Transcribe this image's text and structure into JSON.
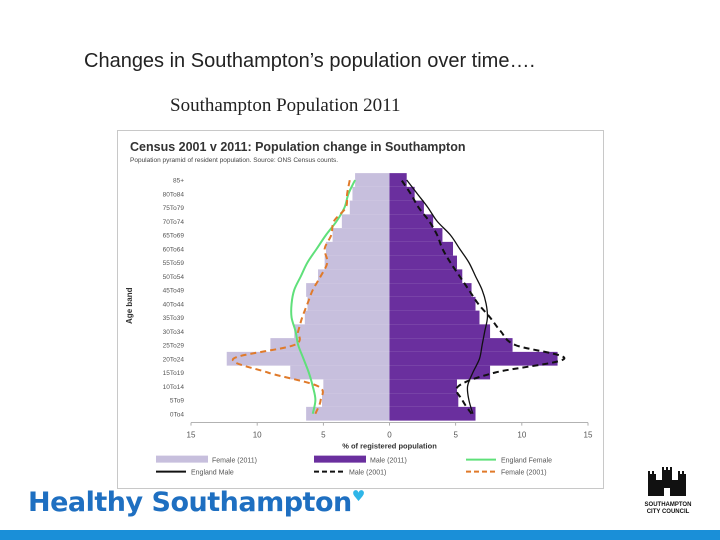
{
  "slide": {
    "title": "Changes in Southampton’s population over time….",
    "subtitle": "Southampton Population 2011",
    "brand": "Healthy Southampton",
    "council_logo_text": [
      "SOUTHAMPTON",
      "CITY COUNCIL"
    ]
  },
  "colors": {
    "female_2011": "#c7bfdd",
    "male_2011": "#6a2f9e",
    "england_female": "#5fe07a",
    "england_male": "#111111",
    "female_2001": "#e07a2a",
    "male_2001": "#111111",
    "brand_blue": "#1e6fc1",
    "band_blue": "#1a8fd8"
  },
  "chart_data": {
    "type": "population_pyramid",
    "title": "Census 2001 v 2011: Population change in Southampton",
    "subtitle": "Population pyramid of resident population. Source: ONS Census counts.",
    "ylabel": "Age band",
    "xlabel": "% of registered population",
    "xlim": [
      -15,
      15
    ],
    "x_ticks": [
      "15",
      "10",
      "5",
      "0",
      "5",
      "10",
      "15"
    ],
    "x_tick_values": [
      -15,
      -10,
      -5,
      0,
      5,
      10,
      15
    ],
    "categories": [
      "0To4",
      "5To9",
      "10To14",
      "15To19",
      "20To24",
      "25To29",
      "30To34",
      "35To39",
      "40To44",
      "45To49",
      "50To54",
      "55To59",
      "60To64",
      "65To69",
      "70To74",
      "75To79",
      "80To84",
      "85+"
    ],
    "category_labels": [
      "0To4",
      "5To9",
      "10To14",
      "15To19",
      "20To24",
      "25To29",
      "30To34",
      "35To39",
      "40To44",
      "45To49",
      "50To54",
      "55To59",
      "60To64",
      "65To69",
      "70To74",
      "75To79",
      "80To84",
      "85+"
    ],
    "series": [
      {
        "name": "Female (2011)",
        "kind": "bar",
        "side": "left",
        "values": [
          6.3,
          5.1,
          5.0,
          7.5,
          12.3,
          9.0,
          7.2,
          6.4,
          6.2,
          6.3,
          5.4,
          4.9,
          4.8,
          4.3,
          3.6,
          3.0,
          2.8,
          2.6
        ]
      },
      {
        "name": "Male (2011)",
        "kind": "bar",
        "side": "right",
        "values": [
          6.5,
          5.2,
          5.1,
          7.6,
          12.7,
          9.3,
          7.6,
          6.8,
          6.5,
          6.2,
          5.5,
          5.1,
          4.8,
          4.0,
          3.3,
          2.6,
          1.9,
          1.3
        ]
      },
      {
        "name": "England Female",
        "kind": "line",
        "side": "left",
        "values": [
          5.8,
          5.6,
          5.8,
          6.1,
          6.5,
          6.9,
          7.1,
          7.4,
          7.4,
          7.2,
          6.7,
          6.2,
          5.5,
          4.8,
          4.0,
          3.4,
          3.1,
          2.6
        ]
      },
      {
        "name": "England Male",
        "kind": "line",
        "side": "right",
        "values": [
          6.3,
          6.0,
          5.9,
          6.3,
          6.8,
          7.0,
          7.2,
          7.4,
          7.3,
          7.0,
          6.5,
          6.0,
          5.3,
          4.6,
          3.6,
          2.9,
          2.1,
          1.3
        ]
      },
      {
        "name": "Male (2001)",
        "kind": "line",
        "side": "right",
        "values": [
          6.2,
          5.5,
          5.2,
          8.0,
          13.2,
          9.5,
          8.4,
          7.6,
          6.7,
          6.0,
          5.3,
          4.6,
          4.0,
          3.6,
          3.0,
          2.2,
          1.6,
          0.9
        ]
      },
      {
        "name": "Female (2001)",
        "kind": "line",
        "side": "left",
        "values": [
          5.6,
          5.2,
          5.4,
          9.2,
          11.8,
          7.2,
          6.9,
          6.6,
          6.2,
          5.8,
          5.2,
          4.7,
          4.9,
          4.4,
          4.2,
          3.3,
          3.2,
          3.0
        ]
      }
    ],
    "legend": [
      "Female (2011)",
      "Male (2011)",
      "England Female",
      "England Male",
      "Male (2001)",
      "Female (2001)"
    ],
    "legend_position": "bottom",
    "grid": false
  }
}
